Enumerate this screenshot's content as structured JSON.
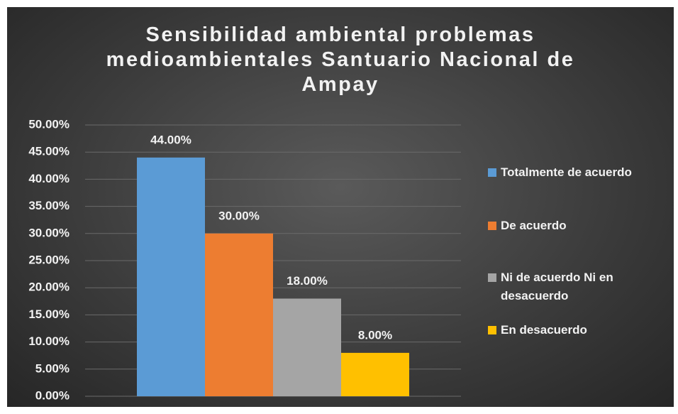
{
  "chart_data": {
    "type": "bar",
    "title": "Sensibilidad ambiental problemas medioambientales Santuario Nacional de Ampay",
    "series": [
      {
        "name": "Totalmente de acuerdo",
        "color": "#5b9bd5",
        "values": [
          44
        ],
        "value_labels": [
          "44.00%"
        ]
      },
      {
        "name": "De acuerdo",
        "color": "#ed7d31",
        "values": [
          30
        ],
        "value_labels": [
          "30.00%"
        ]
      },
      {
        "name": "Ni de acuerdo Ni en desacuerdo",
        "color": "#a5a5a5",
        "values": [
          18
        ],
        "value_labels": [
          "18.00%"
        ]
      },
      {
        "name": "En desacuerdo",
        "color": "#ffc000",
        "values": [
          8
        ],
        "value_labels": [
          "8.00%"
        ]
      }
    ],
    "ylim": [
      0,
      50
    ],
    "yticks": [
      {
        "value": 0,
        "label": "0.00%"
      },
      {
        "value": 5,
        "label": "5.00%"
      },
      {
        "value": 10,
        "label": "10.00%"
      },
      {
        "value": 15,
        "label": "15.00%"
      },
      {
        "value": 20,
        "label": "20.00%"
      },
      {
        "value": 25,
        "label": "25.00%"
      },
      {
        "value": 30,
        "label": "30.00%"
      },
      {
        "value": 35,
        "label": "35.00%"
      },
      {
        "value": 40,
        "label": "40.00%"
      },
      {
        "value": 45,
        "label": "45.00%"
      },
      {
        "value": 50,
        "label": "50.00%"
      }
    ],
    "grid": true,
    "legend": "right"
  }
}
